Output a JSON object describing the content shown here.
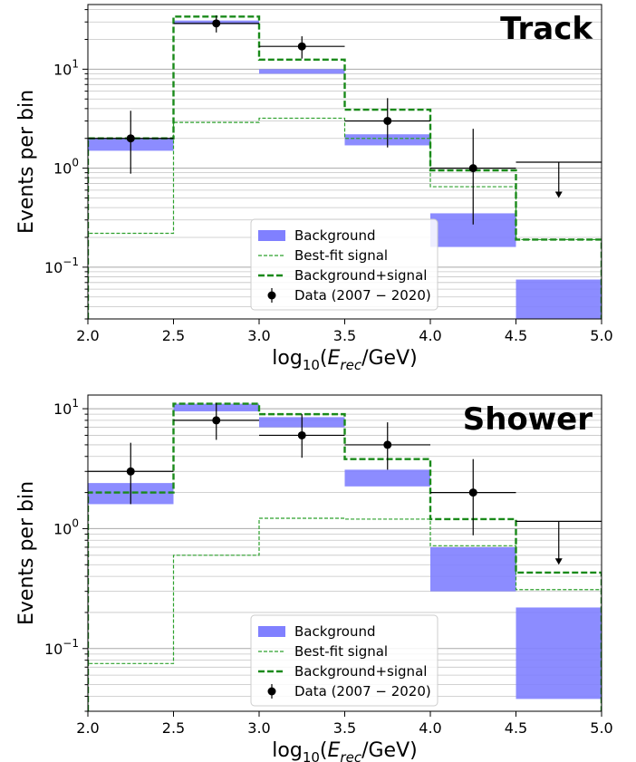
{
  "chart_data": [
    {
      "type": "step-histogram",
      "title": "Track",
      "xlabel_base": "log",
      "xlabel_sub": "10",
      "xlabel_open": "(",
      "xlabel_var": "E",
      "xlabel_varsub": "rec",
      "xlabel_tail": "/GeV)",
      "ylabel": "Events per bin",
      "xlim": [
        2.0,
        5.0
      ],
      "ylim": [
        0.03,
        45
      ],
      "yscale": "log",
      "grid": "horizontal",
      "legend_position": "bottom-center",
      "x_ticks": [
        "2.0",
        "2.5",
        "3.0",
        "3.5",
        "4.0",
        "4.5",
        "5.0"
      ],
      "y_ticks": [
        {
          "base": "10",
          "exp": "−1",
          "value": 0.1
        },
        {
          "base": "10",
          "exp": "0",
          "value": 1
        },
        {
          "base": "10",
          "exp": "1",
          "value": 10
        }
      ],
      "bin_edges": [
        2.0,
        2.5,
        3.0,
        3.5,
        4.0,
        4.5,
        5.0
      ],
      "background_band": {
        "name": "Background",
        "color": "#8080ff",
        "low": [
          1.5,
          28.5,
          9.0,
          1.7,
          0.16,
          0.025
        ],
        "high": [
          2.0,
          31.0,
          10.0,
          2.2,
          0.35,
          0.075
        ]
      },
      "series": [
        {
          "name": "Best-fit signal",
          "style": "thin-dashed",
          "color": "#2ca02c",
          "values": [
            0.22,
            2.9,
            3.2,
            2.0,
            0.65,
            0.19
          ]
        },
        {
          "name": "Background+signal",
          "style": "thick-dashed",
          "color": "#1a8a1a",
          "values": [
            2.0,
            34.0,
            12.5,
            3.9,
            0.95,
            0.19
          ]
        }
      ],
      "data_points": {
        "name": "Data (2007 − 2020)",
        "x": [
          2.25,
          2.75,
          3.25,
          3.75,
          4.25
        ],
        "y": [
          2.0,
          29.0,
          17.0,
          3.0,
          1.0
        ],
        "yerr_low": [
          0.88,
          23.5,
          12.8,
          1.62,
          0.27
        ],
        "yerr_high": [
          3.8,
          35.0,
          21.5,
          5.1,
          2.5
        ],
        "xerr": 0.25
      },
      "upper_limit": {
        "x": 4.75,
        "from": 1.15,
        "to": 0.5
      }
    },
    {
      "type": "step-histogram",
      "title": "Shower",
      "xlabel_base": "log",
      "xlabel_sub": "10",
      "xlabel_open": "(",
      "xlabel_var": "E",
      "xlabel_varsub": "rec",
      "xlabel_tail": "/GeV)",
      "ylabel": "Events per bin",
      "xlim": [
        2.0,
        5.0
      ],
      "ylim": [
        0.03,
        13
      ],
      "yscale": "log",
      "grid": "horizontal",
      "legend_position": "bottom-center",
      "x_ticks": [
        "2.0",
        "2.5",
        "3.0",
        "3.5",
        "4.0",
        "4.5",
        "5.0"
      ],
      "y_ticks": [
        {
          "base": "10",
          "exp": "−1",
          "value": 0.1
        },
        {
          "base": "10",
          "exp": "0",
          "value": 1
        },
        {
          "base": "10",
          "exp": "1",
          "value": 10
        }
      ],
      "bin_edges": [
        2.0,
        2.5,
        3.0,
        3.5,
        4.0,
        4.5,
        5.0
      ],
      "background_band": {
        "name": "Background",
        "color": "#8080ff",
        "low": [
          1.6,
          9.5,
          7.0,
          2.25,
          0.3,
          0.038
        ],
        "high": [
          2.4,
          11.0,
          8.5,
          3.1,
          0.7,
          0.22
        ]
      },
      "series": [
        {
          "name": "Best-fit signal",
          "style": "thin-dashed",
          "color": "#2ca02c",
          "values": [
            0.075,
            0.6,
            1.22,
            1.2,
            0.72,
            0.31
          ]
        },
        {
          "name": "Background+signal",
          "style": "thick-dashed",
          "color": "#1a8a1a",
          "values": [
            2.0,
            11.0,
            9.0,
            3.8,
            1.2,
            0.43
          ]
        }
      ],
      "data_points": {
        "name": "Data (2007 − 2020)",
        "x": [
          2.25,
          2.75,
          3.25,
          3.75,
          4.25
        ],
        "y": [
          3.0,
          8.0,
          6.0,
          5.0,
          2.0
        ],
        "yerr_low": [
          1.6,
          5.5,
          3.9,
          3.1,
          0.88
        ],
        "yerr_high": [
          5.2,
          11.2,
          9.0,
          7.7,
          3.8
        ],
        "xerr": 0.25
      },
      "upper_limit": {
        "x": 4.75,
        "from": 1.15,
        "to": 0.5
      }
    }
  ]
}
